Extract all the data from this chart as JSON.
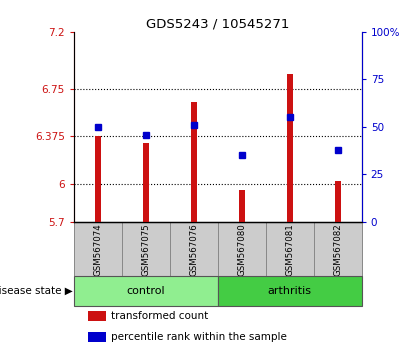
{
  "title": "GDS5243 / 10545271",
  "samples": [
    "GSM567074",
    "GSM567075",
    "GSM567076",
    "GSM567080",
    "GSM567081",
    "GSM567082"
  ],
  "groups": [
    "control",
    "control",
    "control",
    "arthritis",
    "arthritis",
    "arthritis"
  ],
  "bar_values": [
    6.38,
    6.32,
    6.65,
    5.95,
    6.87,
    6.02
  ],
  "percentile_values": [
    50,
    46,
    51,
    35,
    55,
    38
  ],
  "bar_baseline": 5.7,
  "ylim_left": [
    5.7,
    7.2
  ],
  "ylim_right": [
    0,
    100
  ],
  "yticks_left": [
    5.7,
    6.0,
    6.375,
    6.75,
    7.2
  ],
  "yticks_right": [
    0,
    25,
    50,
    75,
    100
  ],
  "ytick_labels_left": [
    "5.7",
    "6",
    "6.375",
    "6.75",
    "7.2"
  ],
  "ytick_labels_right": [
    "0",
    "25",
    "50",
    "75",
    "100%"
  ],
  "grid_lines": [
    6.0,
    6.375,
    6.75
  ],
  "bar_color": "#cc1111",
  "blue_color": "#0000cc",
  "control_color": "#90ee90",
  "arthritis_color": "#44cc44",
  "sample_bg": "#cccccc",
  "bar_width": 0.12,
  "legend_labels": [
    "transformed count",
    "percentile rank within the sample"
  ]
}
